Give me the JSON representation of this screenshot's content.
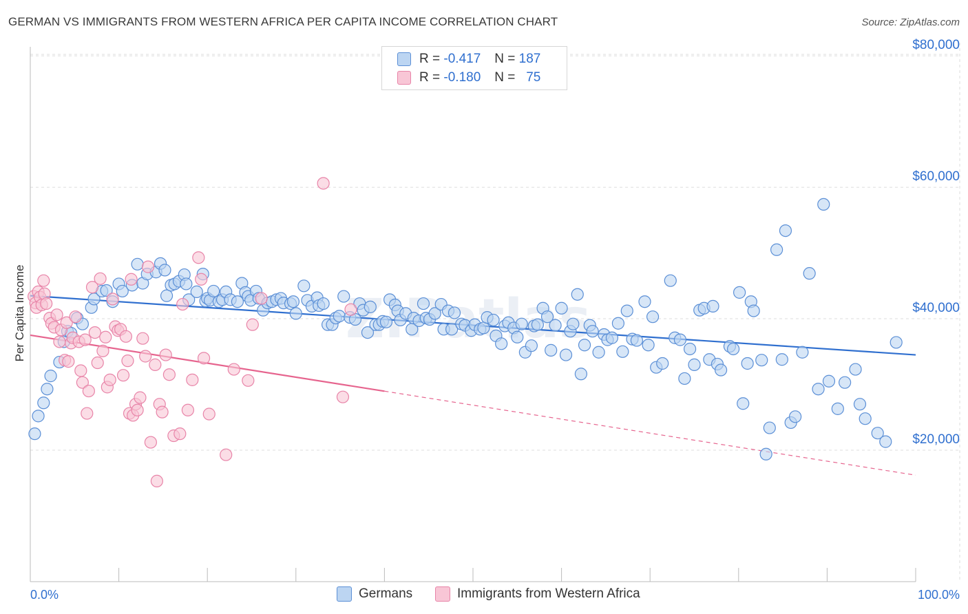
{
  "title": "GERMAN VS IMMIGRANTS FROM WESTERN AFRICA PER CAPITA INCOME CORRELATION CHART",
  "source": "Source: ZipAtlas.com",
  "legend": {
    "rows": [
      {
        "r_label": "R =",
        "r_value": "-0.417",
        "n_label": "N =",
        "n_value": "187"
      },
      {
        "r_label": "R =",
        "r_value": "-0.180",
        "n_label": "N =",
        "n_value": "75"
      }
    ]
  },
  "bottom_legend": {
    "series1": "Germans",
    "series2": "Immigrants from Western Africa"
  },
  "colors": {
    "blue_fill": "#bcd5f2",
    "blue_stroke": "#5b8fd6",
    "blue_line": "#2f6fcf",
    "pink_fill": "#f8c6d6",
    "pink_stroke": "#e884a8",
    "pink_line": "#e6648e",
    "axis_text": "#2f6fcf",
    "grid": "#dddddd"
  },
  "watermark": "ZIPatlas",
  "chart_data": {
    "type": "scatter",
    "title": "GERMAN VS IMMIGRANTS FROM WESTERN AFRICA PER CAPITA INCOME CORRELATION CHART",
    "xlabel": "",
    "ylabel": "Per Capita Income",
    "xlim": [
      0,
      100
    ],
    "ylim": [
      0,
      82000
    ],
    "x_tick_labels": [
      "0.0%",
      "100.0%"
    ],
    "y_ticks": [
      20000,
      40000,
      60000,
      80000
    ],
    "y_tick_labels": [
      "$20,000",
      "$40,000",
      "$60,000",
      "$80,000"
    ],
    "grid": true,
    "legend_position": "top-center",
    "series": [
      {
        "name": "Germans",
        "r": -0.417,
        "n": 187,
        "trend": {
          "x": [
            0,
            100
          ],
          "y": [
            43500,
            34500
          ],
          "solid_to": 100
        },
        "points": [
          [
            0.5,
            22500
          ],
          [
            0.9,
            25200
          ],
          [
            1.5,
            27200
          ],
          [
            1.9,
            29300
          ],
          [
            2.3,
            31300
          ],
          [
            3.3,
            33400
          ],
          [
            3.8,
            36500
          ],
          [
            4.2,
            38100
          ],
          [
            4.6,
            37800
          ],
          [
            5.3,
            40100
          ],
          [
            5.9,
            39200
          ],
          [
            6.9,
            41700
          ],
          [
            7.2,
            43000
          ],
          [
            8.1,
            44200
          ],
          [
            8.6,
            44300
          ],
          [
            9.3,
            42600
          ],
          [
            10,
            45300
          ],
          [
            10.4,
            44200
          ],
          [
            11.5,
            45100
          ],
          [
            12.1,
            48300
          ],
          [
            12.7,
            45400
          ],
          [
            13.2,
            46800
          ],
          [
            14.2,
            47100
          ],
          [
            14.7,
            48400
          ],
          [
            15.2,
            47400
          ],
          [
            15.4,
            43500
          ],
          [
            15.9,
            45100
          ],
          [
            16.3,
            45300
          ],
          [
            16.8,
            45700
          ],
          [
            17.4,
            46700
          ],
          [
            17.6,
            45300
          ],
          [
            17.9,
            42900
          ],
          [
            18.8,
            44100
          ],
          [
            19.5,
            46800
          ],
          [
            19.8,
            42700
          ],
          [
            20,
            43100
          ],
          [
            20.3,
            42800
          ],
          [
            20.7,
            44200
          ],
          [
            21.3,
            42600
          ],
          [
            21.7,
            42900
          ],
          [
            22.1,
            44100
          ],
          [
            22.6,
            42900
          ],
          [
            23.4,
            42600
          ],
          [
            23.9,
            45400
          ],
          [
            24.3,
            44000
          ],
          [
            24.6,
            43400
          ],
          [
            24.9,
            42800
          ],
          [
            25.5,
            44200
          ],
          [
            25.8,
            43100
          ],
          [
            26.3,
            41300
          ],
          [
            26.8,
            42400
          ],
          [
            27.3,
            42600
          ],
          [
            27.8,
            42900
          ],
          [
            28.3,
            43100
          ],
          [
            28.6,
            42400
          ],
          [
            29.4,
            42300
          ],
          [
            29.7,
            42600
          ],
          [
            30,
            40800
          ],
          [
            30.9,
            45000
          ],
          [
            31.3,
            42800
          ],
          [
            31.8,
            41900
          ],
          [
            32.4,
            43200
          ],
          [
            32.6,
            42000
          ],
          [
            33.1,
            42300
          ],
          [
            33.6,
            39100
          ],
          [
            34.1,
            39100
          ],
          [
            34.5,
            40100
          ],
          [
            34.9,
            40400
          ],
          [
            35.4,
            43400
          ],
          [
            36.1,
            40200
          ],
          [
            36.7,
            39900
          ],
          [
            37.2,
            42300
          ],
          [
            37.6,
            41300
          ],
          [
            38.1,
            37900
          ],
          [
            38.4,
            41800
          ],
          [
            39,
            39100
          ],
          [
            39.4,
            39100
          ],
          [
            39.8,
            39600
          ],
          [
            40.2,
            39500
          ],
          [
            40.6,
            42900
          ],
          [
            41.2,
            42100
          ],
          [
            41.5,
            41200
          ],
          [
            41.8,
            39800
          ],
          [
            42.4,
            40800
          ],
          [
            43.1,
            38400
          ],
          [
            43.3,
            40100
          ],
          [
            43.9,
            39700
          ],
          [
            44.4,
            42300
          ],
          [
            44.7,
            40100
          ],
          [
            45.1,
            39900
          ],
          [
            45.7,
            40800
          ],
          [
            46.4,
            42200
          ],
          [
            46.7,
            38400
          ],
          [
            47.2,
            41200
          ],
          [
            47.6,
            38400
          ],
          [
            47.9,
            40900
          ],
          [
            48.7,
            39200
          ],
          [
            49.1,
            39000
          ],
          [
            49.8,
            38200
          ],
          [
            50.2,
            39100
          ],
          [
            50.8,
            38400
          ],
          [
            51.2,
            38600
          ],
          [
            51.6,
            40200
          ],
          [
            52.3,
            39800
          ],
          [
            52.6,
            37400
          ],
          [
            53.2,
            36200
          ],
          [
            53.6,
            38900
          ],
          [
            54,
            39400
          ],
          [
            54.6,
            38600
          ],
          [
            55,
            37200
          ],
          [
            55.5,
            39200
          ],
          [
            55.9,
            34900
          ],
          [
            56.6,
            35900
          ],
          [
            56.9,
            38900
          ],
          [
            57.3,
            39100
          ],
          [
            57.9,
            41600
          ],
          [
            58.4,
            40300
          ],
          [
            58.8,
            35200
          ],
          [
            59.3,
            39000
          ],
          [
            60,
            41600
          ],
          [
            60.5,
            34500
          ],
          [
            61,
            38100
          ],
          [
            61.3,
            39200
          ],
          [
            61.8,
            43700
          ],
          [
            62.2,
            31600
          ],
          [
            62.6,
            36000
          ],
          [
            63.2,
            39000
          ],
          [
            63.5,
            38100
          ],
          [
            64.2,
            34900
          ],
          [
            64.8,
            37600
          ],
          [
            65.2,
            36800
          ],
          [
            65.7,
            37100
          ],
          [
            66.4,
            39300
          ],
          [
            66.9,
            35000
          ],
          [
            67.4,
            41200
          ],
          [
            68,
            36900
          ],
          [
            68.5,
            36700
          ],
          [
            69.4,
            42600
          ],
          [
            69.8,
            36000
          ],
          [
            70.3,
            40300
          ],
          [
            70.7,
            32600
          ],
          [
            71.4,
            33200
          ],
          [
            72.3,
            45800
          ],
          [
            72.8,
            37100
          ],
          [
            73.4,
            36800
          ],
          [
            73.9,
            30900
          ],
          [
            74.5,
            35400
          ],
          [
            75,
            33000
          ],
          [
            75.6,
            41300
          ],
          [
            76.1,
            41600
          ],
          [
            76.7,
            33800
          ],
          [
            77.1,
            41900
          ],
          [
            77.6,
            33100
          ],
          [
            78,
            32200
          ],
          [
            79,
            35800
          ],
          [
            79.4,
            35400
          ],
          [
            80.1,
            44000
          ],
          [
            80.5,
            27100
          ],
          [
            81,
            33200
          ],
          [
            81.4,
            42600
          ],
          [
            81.7,
            41200
          ],
          [
            82.6,
            33700
          ],
          [
            83.1,
            19400
          ],
          [
            83.5,
            23400
          ],
          [
            84.3,
            50500
          ],
          [
            84.9,
            33800
          ],
          [
            85.3,
            53400
          ],
          [
            85.9,
            24200
          ],
          [
            86.4,
            25100
          ],
          [
            87.2,
            34900
          ],
          [
            88,
            46900
          ],
          [
            89,
            29300
          ],
          [
            89.6,
            57400
          ],
          [
            90.2,
            30500
          ],
          [
            91.2,
            26300
          ],
          [
            92,
            30300
          ],
          [
            93.2,
            32300
          ],
          [
            93.7,
            27000
          ],
          [
            94.3,
            24800
          ],
          [
            95.7,
            22600
          ],
          [
            96.6,
            21300
          ],
          [
            97.8,
            36400
          ]
        ]
      },
      {
        "name": "Immigrants from Western Africa",
        "r": -0.18,
        "n": 75,
        "trend": {
          "x": [
            0,
            100
          ],
          "y": [
            37500,
            16200
          ],
          "solid_to": 40
        },
        "points": [
          [
            0.4,
            43400
          ],
          [
            0.6,
            42400
          ],
          [
            0.7,
            41700
          ],
          [
            0.9,
            44100
          ],
          [
            1.1,
            43300
          ],
          [
            1.3,
            42100
          ],
          [
            1.5,
            45800
          ],
          [
            1.6,
            43800
          ],
          [
            1.8,
            42300
          ],
          [
            2.2,
            40100
          ],
          [
            2.4,
            39300
          ],
          [
            2.7,
            38700
          ],
          [
            3,
            40600
          ],
          [
            3.3,
            36500
          ],
          [
            3.5,
            38300
          ],
          [
            3.9,
            33700
          ],
          [
            4.1,
            39400
          ],
          [
            4.3,
            33500
          ],
          [
            4.6,
            36300
          ],
          [
            4.8,
            37100
          ],
          [
            5.1,
            40300
          ],
          [
            5.5,
            36500
          ],
          [
            5.7,
            32100
          ],
          [
            5.9,
            30300
          ],
          [
            6.2,
            36800
          ],
          [
            6.4,
            25600
          ],
          [
            6.6,
            29000
          ],
          [
            7,
            44800
          ],
          [
            7.3,
            37900
          ],
          [
            7.6,
            33300
          ],
          [
            7.9,
            46100
          ],
          [
            8.2,
            35100
          ],
          [
            8.5,
            37200
          ],
          [
            8.7,
            29600
          ],
          [
            9,
            30700
          ],
          [
            9.3,
            43000
          ],
          [
            9.6,
            38800
          ],
          [
            9.9,
            38200
          ],
          [
            10.2,
            38400
          ],
          [
            10.5,
            31400
          ],
          [
            10.8,
            37300
          ],
          [
            11,
            33600
          ],
          [
            11.2,
            25600
          ],
          [
            11.4,
            46000
          ],
          [
            11.6,
            25300
          ],
          [
            11.9,
            27000
          ],
          [
            12.1,
            26100
          ],
          [
            12.4,
            28000
          ],
          [
            12.7,
            37000
          ],
          [
            13,
            34300
          ],
          [
            13.3,
            47900
          ],
          [
            13.6,
            21200
          ],
          [
            14.1,
            33000
          ],
          [
            14.3,
            15300
          ],
          [
            14.6,
            27000
          ],
          [
            14.9,
            25800
          ],
          [
            15.3,
            34500
          ],
          [
            15.7,
            31500
          ],
          [
            16.2,
            22200
          ],
          [
            16.9,
            22500
          ],
          [
            17.2,
            42200
          ],
          [
            17.8,
            26100
          ],
          [
            18.3,
            30700
          ],
          [
            19,
            49300
          ],
          [
            19.3,
            46000
          ],
          [
            19.6,
            34000
          ],
          [
            20.2,
            25500
          ],
          [
            22.1,
            19300
          ],
          [
            23,
            32300
          ],
          [
            24.6,
            30600
          ],
          [
            25.1,
            39100
          ],
          [
            26.1,
            43100
          ],
          [
            33.1,
            60600
          ],
          [
            35.3,
            28100
          ],
          [
            36.2,
            41400
          ]
        ]
      }
    ]
  }
}
